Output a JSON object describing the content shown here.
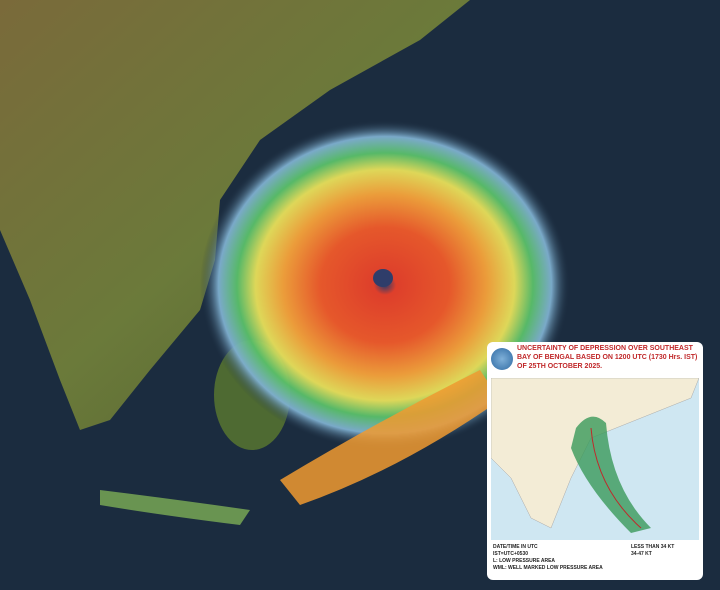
{
  "inset": {
    "title": "UNCERTAINTY OF DEPRESSION OVER SOUTHEAST BAY OF BENGAL BASED ON 1200 UTC (1730 Hrs. IST) OF 25TH OCTOBER 2025.",
    "legend_left": [
      "DATE/TIME IN UTC",
      "IST=UTC+0530",
      "L: LOW PRESSURE AREA",
      "WML: WELL MARKED LOW PRESSURE AREA"
    ],
    "legend_right": [
      "LESS THAN 34 KT",
      "34-47 KT"
    ],
    "cone_color": "#3a9a5a"
  }
}
